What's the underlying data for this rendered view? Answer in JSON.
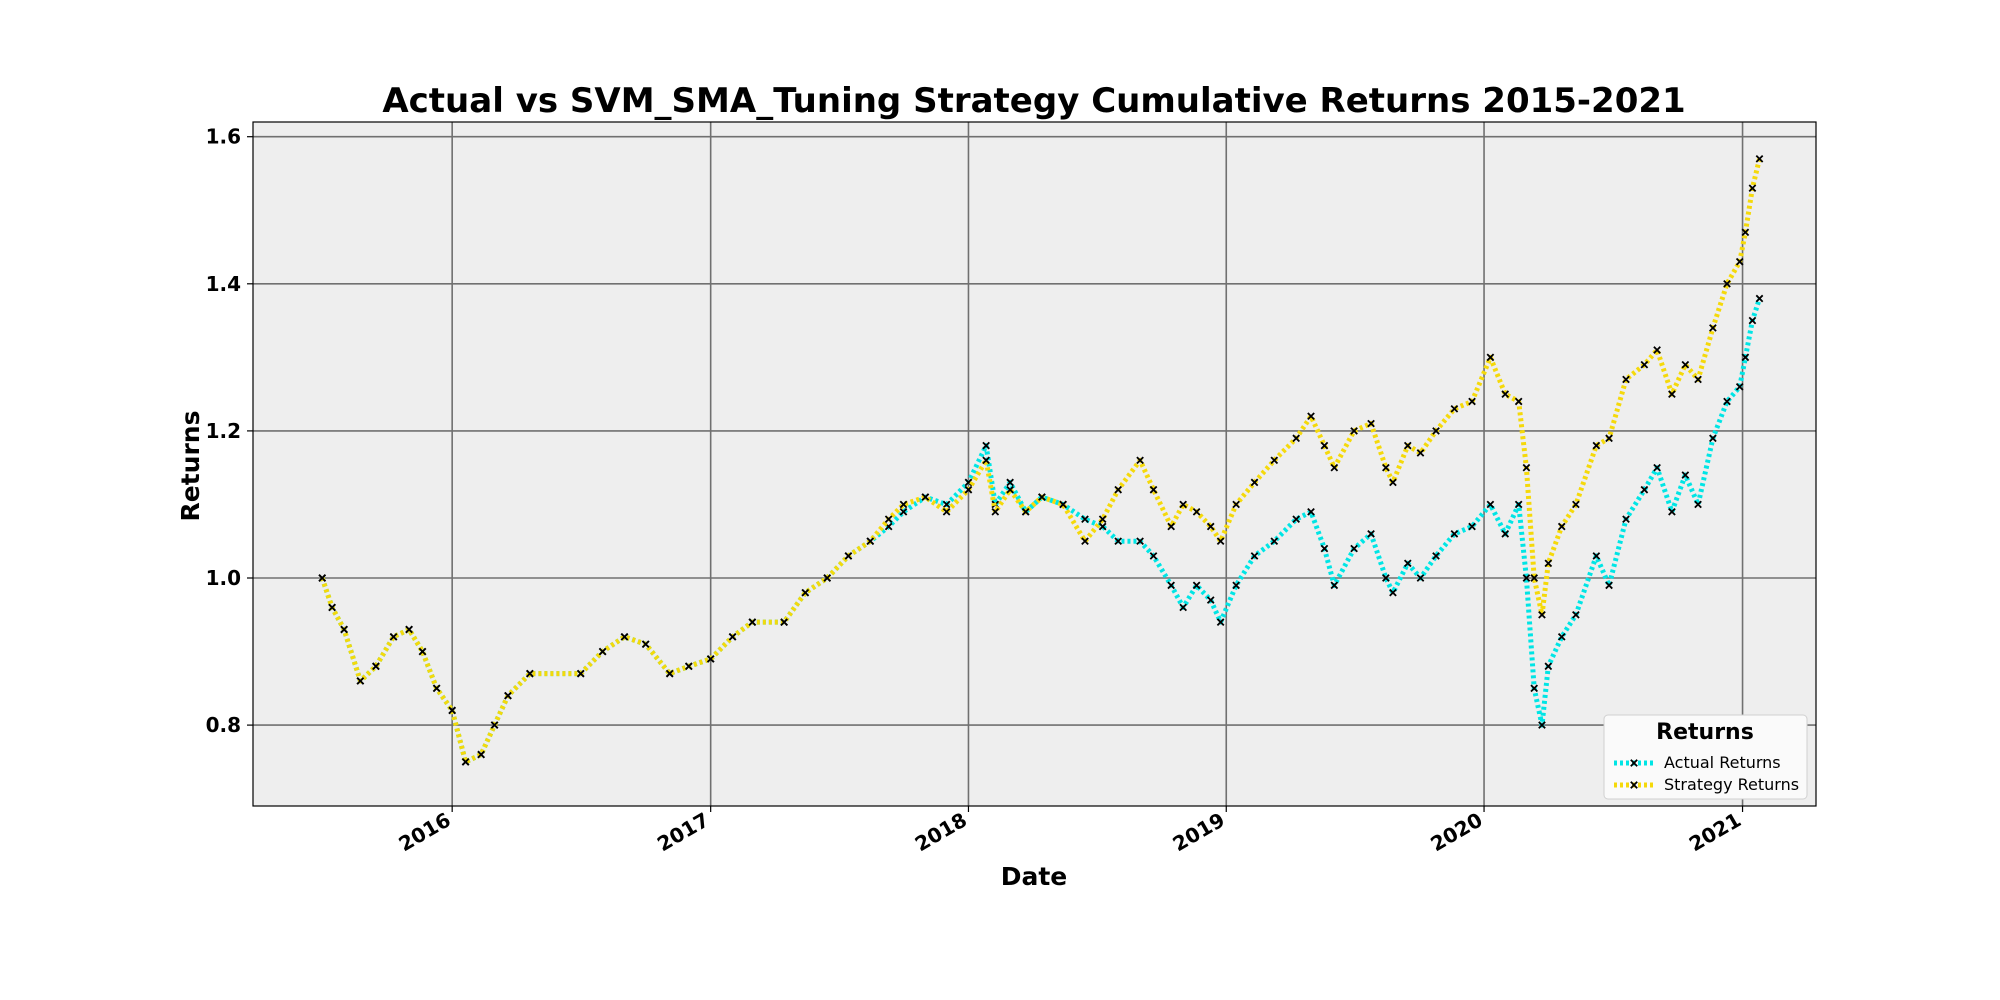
{
  "chart_data": {
    "type": "line",
    "title": "Actual vs SVM_SMA_Tuning Strategy Cumulative Returns 2015-2021",
    "xlabel": "Date",
    "ylabel": "Returns",
    "x_range": [
      "2015-03-25",
      "2021-04-15"
    ],
    "ylim": [
      0.69,
      1.62
    ],
    "x_ticks": [
      {
        "date": "2016-01-01",
        "label": "2016"
      },
      {
        "date": "2017-01-01",
        "label": "2017"
      },
      {
        "date": "2018-01-01",
        "label": "2018"
      },
      {
        "date": "2019-01-01",
        "label": "2019"
      },
      {
        "date": "2020-01-01",
        "label": "2020"
      },
      {
        "date": "2021-01-01",
        "label": "2021"
      }
    ],
    "y_ticks": [
      {
        "value": 0.8,
        "label": "0.8"
      },
      {
        "value": 1.0,
        "label": "1.0"
      },
      {
        "value": 1.2,
        "label": "1.2"
      },
      {
        "value": 1.4,
        "label": "1.4"
      },
      {
        "value": 1.6,
        "label": "1.6"
      }
    ],
    "grid": true,
    "legend": {
      "title": "Returns",
      "placement": "lower-right"
    },
    "plot_background": "#eeeeee",
    "marker_color": "#000000",
    "series": [
      {
        "name": "Actual Returns",
        "color": "#00e5e5",
        "points": [
          [
            "2015-07-01",
            1.0
          ],
          [
            "2015-07-15",
            0.96
          ],
          [
            "2015-08-01",
            0.93
          ],
          [
            "2015-08-24",
            0.86
          ],
          [
            "2015-09-15",
            0.88
          ],
          [
            "2015-10-10",
            0.92
          ],
          [
            "2015-11-01",
            0.93
          ],
          [
            "2015-11-20",
            0.9
          ],
          [
            "2015-12-10",
            0.85
          ],
          [
            "2016-01-01",
            0.82
          ],
          [
            "2016-01-20",
            0.75
          ],
          [
            "2016-02-11",
            0.76
          ],
          [
            "2016-03-01",
            0.8
          ],
          [
            "2016-03-20",
            0.84
          ],
          [
            "2016-04-20",
            0.87
          ],
          [
            "2016-07-01",
            0.87
          ],
          [
            "2016-08-01",
            0.9
          ],
          [
            "2016-09-01",
            0.92
          ],
          [
            "2016-10-01",
            0.91
          ],
          [
            "2016-11-04",
            0.87
          ],
          [
            "2016-12-01",
            0.88
          ],
          [
            "2017-01-01",
            0.89
          ],
          [
            "2017-02-01",
            0.92
          ],
          [
            "2017-03-01",
            0.94
          ],
          [
            "2017-04-15",
            0.94
          ],
          [
            "2017-05-15",
            0.98
          ],
          [
            "2017-06-15",
            1.0
          ],
          [
            "2017-07-15",
            1.03
          ],
          [
            "2017-08-15",
            1.05
          ],
          [
            "2017-09-10",
            1.07
          ],
          [
            "2017-10-01",
            1.09
          ],
          [
            "2017-11-01",
            1.11
          ],
          [
            "2017-12-01",
            1.1
          ],
          [
            "2018-01-01",
            1.13
          ],
          [
            "2018-01-26",
            1.18
          ],
          [
            "2018-02-08",
            1.1
          ],
          [
            "2018-03-01",
            1.13
          ],
          [
            "2018-03-23",
            1.09
          ],
          [
            "2018-04-15",
            1.11
          ],
          [
            "2018-05-15",
            1.1
          ],
          [
            "2018-06-15",
            1.08
          ],
          [
            "2018-07-10",
            1.07
          ],
          [
            "2018-08-01",
            1.05
          ],
          [
            "2018-09-01",
            1.05
          ],
          [
            "2018-09-20",
            1.03
          ],
          [
            "2018-10-15",
            0.99
          ],
          [
            "2018-11-01",
            0.96
          ],
          [
            "2018-11-20",
            0.99
          ],
          [
            "2018-12-10",
            0.97
          ],
          [
            "2018-12-24",
            0.94
          ],
          [
            "2019-01-15",
            0.99
          ],
          [
            "2019-02-10",
            1.03
          ],
          [
            "2019-03-10",
            1.05
          ],
          [
            "2019-04-10",
            1.08
          ],
          [
            "2019-05-01",
            1.09
          ],
          [
            "2019-05-20",
            1.04
          ],
          [
            "2019-06-03",
            0.99
          ],
          [
            "2019-07-01",
            1.04
          ],
          [
            "2019-07-25",
            1.06
          ],
          [
            "2019-08-15",
            1.0
          ],
          [
            "2019-08-25",
            0.98
          ],
          [
            "2019-09-15",
            1.02
          ],
          [
            "2019-10-03",
            1.0
          ],
          [
            "2019-10-25",
            1.03
          ],
          [
            "2019-11-20",
            1.06
          ],
          [
            "2019-12-15",
            1.07
          ],
          [
            "2020-01-10",
            1.1
          ],
          [
            "2020-01-31",
            1.06
          ],
          [
            "2020-02-19",
            1.1
          ],
          [
            "2020-03-01",
            1.0
          ],
          [
            "2020-03-12",
            0.85
          ],
          [
            "2020-03-23",
            0.8
          ],
          [
            "2020-04-01",
            0.88
          ],
          [
            "2020-04-20",
            0.92
          ],
          [
            "2020-05-10",
            0.95
          ],
          [
            "2020-06-08",
            1.03
          ],
          [
            "2020-06-26",
            0.99
          ],
          [
            "2020-07-20",
            1.08
          ],
          [
            "2020-08-15",
            1.12
          ],
          [
            "2020-09-02",
            1.15
          ],
          [
            "2020-09-23",
            1.09
          ],
          [
            "2020-10-12",
            1.14
          ],
          [
            "2020-10-30",
            1.1
          ],
          [
            "2020-11-20",
            1.19
          ],
          [
            "2020-12-10",
            1.24
          ],
          [
            "2020-12-28",
            1.26
          ],
          [
            "2021-01-05",
            1.3
          ],
          [
            "2021-01-15",
            1.35
          ],
          [
            "2021-01-25",
            1.38
          ]
        ]
      },
      {
        "name": "Strategy Returns",
        "color": "#f5d90a",
        "points": [
          [
            "2015-07-01",
            1.0
          ],
          [
            "2015-07-15",
            0.96
          ],
          [
            "2015-08-01",
            0.93
          ],
          [
            "2015-08-24",
            0.86
          ],
          [
            "2015-09-15",
            0.88
          ],
          [
            "2015-10-10",
            0.92
          ],
          [
            "2015-11-01",
            0.93
          ],
          [
            "2015-11-20",
            0.9
          ],
          [
            "2015-12-10",
            0.85
          ],
          [
            "2016-01-01",
            0.82
          ],
          [
            "2016-01-20",
            0.75
          ],
          [
            "2016-02-11",
            0.76
          ],
          [
            "2016-03-01",
            0.8
          ],
          [
            "2016-03-20",
            0.84
          ],
          [
            "2016-04-20",
            0.87
          ],
          [
            "2016-07-01",
            0.87
          ],
          [
            "2016-08-01",
            0.9
          ],
          [
            "2016-09-01",
            0.92
          ],
          [
            "2016-10-01",
            0.91
          ],
          [
            "2016-11-04",
            0.87
          ],
          [
            "2016-12-01",
            0.88
          ],
          [
            "2017-01-01",
            0.89
          ],
          [
            "2017-02-01",
            0.92
          ],
          [
            "2017-03-01",
            0.94
          ],
          [
            "2017-04-15",
            0.94
          ],
          [
            "2017-05-15",
            0.98
          ],
          [
            "2017-06-15",
            1.0
          ],
          [
            "2017-07-15",
            1.03
          ],
          [
            "2017-08-15",
            1.05
          ],
          [
            "2017-09-10",
            1.08
          ],
          [
            "2017-10-01",
            1.1
          ],
          [
            "2017-11-01",
            1.11
          ],
          [
            "2017-12-01",
            1.09
          ],
          [
            "2018-01-01",
            1.12
          ],
          [
            "2018-01-26",
            1.16
          ],
          [
            "2018-02-08",
            1.09
          ],
          [
            "2018-03-01",
            1.12
          ],
          [
            "2018-03-23",
            1.09
          ],
          [
            "2018-04-15",
            1.11
          ],
          [
            "2018-05-15",
            1.1
          ],
          [
            "2018-06-15",
            1.05
          ],
          [
            "2018-07-10",
            1.08
          ],
          [
            "2018-08-01",
            1.12
          ],
          [
            "2018-09-01",
            1.16
          ],
          [
            "2018-09-20",
            1.12
          ],
          [
            "2018-10-15",
            1.07
          ],
          [
            "2018-11-01",
            1.1
          ],
          [
            "2018-11-20",
            1.09
          ],
          [
            "2018-12-10",
            1.07
          ],
          [
            "2018-12-24",
            1.05
          ],
          [
            "2019-01-15",
            1.1
          ],
          [
            "2019-02-10",
            1.13
          ],
          [
            "2019-03-10",
            1.16
          ],
          [
            "2019-04-10",
            1.19
          ],
          [
            "2019-05-01",
            1.22
          ],
          [
            "2019-05-20",
            1.18
          ],
          [
            "2019-06-03",
            1.15
          ],
          [
            "2019-07-01",
            1.2
          ],
          [
            "2019-07-25",
            1.21
          ],
          [
            "2019-08-15",
            1.15
          ],
          [
            "2019-08-25",
            1.13
          ],
          [
            "2019-09-15",
            1.18
          ],
          [
            "2019-10-03",
            1.17
          ],
          [
            "2019-10-25",
            1.2
          ],
          [
            "2019-11-20",
            1.23
          ],
          [
            "2019-12-15",
            1.24
          ],
          [
            "2020-01-10",
            1.3
          ],
          [
            "2020-01-31",
            1.25
          ],
          [
            "2020-02-19",
            1.24
          ],
          [
            "2020-03-01",
            1.15
          ],
          [
            "2020-03-12",
            1.0
          ],
          [
            "2020-03-23",
            0.95
          ],
          [
            "2020-04-01",
            1.02
          ],
          [
            "2020-04-20",
            1.07
          ],
          [
            "2020-05-10",
            1.1
          ],
          [
            "2020-06-08",
            1.18
          ],
          [
            "2020-06-26",
            1.19
          ],
          [
            "2020-07-20",
            1.27
          ],
          [
            "2020-08-15",
            1.29
          ],
          [
            "2020-09-02",
            1.31
          ],
          [
            "2020-09-23",
            1.25
          ],
          [
            "2020-10-12",
            1.29
          ],
          [
            "2020-10-30",
            1.27
          ],
          [
            "2020-11-20",
            1.34
          ],
          [
            "2020-12-10",
            1.4
          ],
          [
            "2020-12-28",
            1.43
          ],
          [
            "2021-01-05",
            1.47
          ],
          [
            "2021-01-15",
            1.53
          ],
          [
            "2021-01-25",
            1.57
          ]
        ]
      }
    ]
  }
}
